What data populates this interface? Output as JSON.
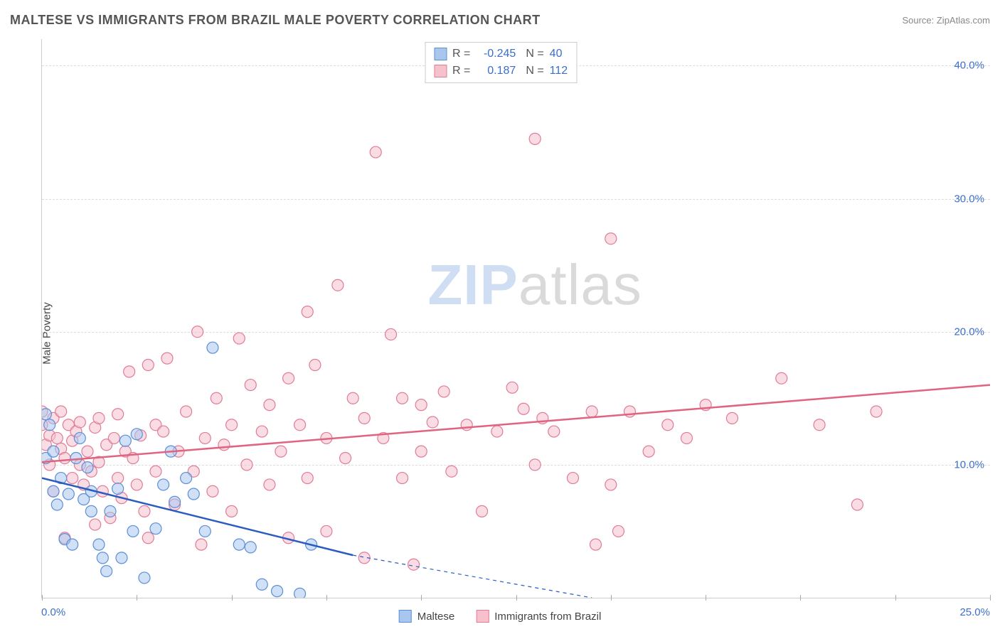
{
  "title": "MALTESE VS IMMIGRANTS FROM BRAZIL MALE POVERTY CORRELATION CHART",
  "source": "Source: ZipAtlas.com",
  "ylabel": "Male Poverty",
  "watermark_a": "ZIP",
  "watermark_b": "atlas",
  "chart": {
    "type": "scatter",
    "xlim": [
      0,
      25
    ],
    "ylim": [
      0,
      42
    ],
    "x_ticks_pct": [
      0,
      25
    ],
    "x_tick_marks": [
      0,
      2.5,
      5,
      7.5,
      10,
      12.5,
      15,
      17.5,
      20,
      22.5,
      25
    ],
    "y_ticks_pct": [
      10,
      20,
      30,
      40
    ],
    "background_color": "#ffffff",
    "grid_color": "#dddddd",
    "axis_color": "#cccccc",
    "tick_label_color": "#3b6fc9",
    "marker_radius": 8,
    "marker_stroke_width": 1.2,
    "trend_line_width": 2.5,
    "trend_dash_width": 1.2,
    "series": [
      {
        "name": "Maltese",
        "label": "Maltese",
        "fill": "#a9c6ef",
        "fill_opacity": 0.55,
        "stroke": "#5b8fd8",
        "line_color": "#2a5cc0",
        "R": "-0.245",
        "N": "40",
        "trend": {
          "x1": 0,
          "y1": 9.0,
          "x2": 8.2,
          "y2": 3.2,
          "dash_x2": 14.5,
          "dash_y2": 0
        },
        "points": [
          [
            0.1,
            10.5
          ],
          [
            0.2,
            13.0
          ],
          [
            0.1,
            13.8
          ],
          [
            0.3,
            8.0
          ],
          [
            0.3,
            11.0
          ],
          [
            0.4,
            7.0
          ],
          [
            0.5,
            9.0
          ],
          [
            0.6,
            4.4
          ],
          [
            0.7,
            7.8
          ],
          [
            0.8,
            4.0
          ],
          [
            0.9,
            10.5
          ],
          [
            1.0,
            12.0
          ],
          [
            1.1,
            7.4
          ],
          [
            1.2,
            9.8
          ],
          [
            1.3,
            8.0
          ],
          [
            1.3,
            6.5
          ],
          [
            1.5,
            4.0
          ],
          [
            1.6,
            3.0
          ],
          [
            1.7,
            2.0
          ],
          [
            1.8,
            6.5
          ],
          [
            2.0,
            8.2
          ],
          [
            2.1,
            3.0
          ],
          [
            2.2,
            11.8
          ],
          [
            2.4,
            5.0
          ],
          [
            2.5,
            12.3
          ],
          [
            2.7,
            1.5
          ],
          [
            3.0,
            5.2
          ],
          [
            3.2,
            8.5
          ],
          [
            3.4,
            11.0
          ],
          [
            3.5,
            7.2
          ],
          [
            3.8,
            9.0
          ],
          [
            4.0,
            7.8
          ],
          [
            4.3,
            5.0
          ],
          [
            4.5,
            18.8
          ],
          [
            5.2,
            4.0
          ],
          [
            5.5,
            3.8
          ],
          [
            5.8,
            1.0
          ],
          [
            6.2,
            0.5
          ],
          [
            6.8,
            0.3
          ],
          [
            7.1,
            4.0
          ]
        ]
      },
      {
        "name": "Immigrants from Brazil",
        "label": "Immigrants from Brazil",
        "fill": "#f6c1cd",
        "fill_opacity": 0.55,
        "stroke": "#e27b95",
        "line_color": "#e0647f",
        "R": "0.187",
        "N": "112",
        "trend": {
          "x1": 0,
          "y1": 10.2,
          "x2": 25,
          "y2": 16.0
        },
        "points": [
          [
            0.0,
            14.0
          ],
          [
            0.0,
            13.0
          ],
          [
            0.1,
            11.5
          ],
          [
            0.2,
            10.0
          ],
          [
            0.2,
            12.2
          ],
          [
            0.3,
            13.5
          ],
          [
            0.3,
            8.0
          ],
          [
            0.4,
            12.0
          ],
          [
            0.5,
            11.2
          ],
          [
            0.5,
            14.0
          ],
          [
            0.6,
            10.5
          ],
          [
            0.7,
            13.0
          ],
          [
            0.8,
            11.8
          ],
          [
            0.8,
            9.0
          ],
          [
            0.9,
            12.5
          ],
          [
            1.0,
            10.0
          ],
          [
            1.0,
            13.2
          ],
          [
            1.1,
            8.5
          ],
          [
            1.2,
            11.0
          ],
          [
            1.3,
            9.5
          ],
          [
            1.4,
            12.8
          ],
          [
            1.5,
            10.2
          ],
          [
            1.5,
            13.5
          ],
          [
            1.6,
            8.0
          ],
          [
            1.7,
            11.5
          ],
          [
            1.8,
            6.0
          ],
          [
            1.9,
            12.0
          ],
          [
            2.0,
            9.0
          ],
          [
            2.0,
            13.8
          ],
          [
            2.1,
            7.5
          ],
          [
            2.2,
            11.0
          ],
          [
            2.3,
            17.0
          ],
          [
            2.4,
            10.5
          ],
          [
            2.5,
            8.5
          ],
          [
            2.6,
            12.2
          ],
          [
            2.7,
            6.5
          ],
          [
            2.8,
            17.5
          ],
          [
            3.0,
            13.0
          ],
          [
            3.0,
            9.5
          ],
          [
            3.2,
            12.5
          ],
          [
            3.3,
            18.0
          ],
          [
            3.5,
            7.0
          ],
          [
            3.6,
            11.0
          ],
          [
            3.8,
            14.0
          ],
          [
            4.0,
            9.5
          ],
          [
            4.1,
            20.0
          ],
          [
            4.3,
            12.0
          ],
          [
            4.5,
            8.0
          ],
          [
            4.6,
            15.0
          ],
          [
            4.8,
            11.5
          ],
          [
            5.0,
            6.5
          ],
          [
            5.0,
            13.0
          ],
          [
            5.2,
            19.5
          ],
          [
            5.4,
            10.0
          ],
          [
            5.5,
            16.0
          ],
          [
            5.8,
            12.5
          ],
          [
            6.0,
            8.5
          ],
          [
            6.0,
            14.5
          ],
          [
            6.3,
            11.0
          ],
          [
            6.5,
            16.5
          ],
          [
            6.5,
            4.5
          ],
          [
            6.8,
            13.0
          ],
          [
            7.0,
            21.5
          ],
          [
            7.0,
            9.0
          ],
          [
            7.2,
            17.5
          ],
          [
            7.5,
            12.0
          ],
          [
            7.5,
            5.0
          ],
          [
            7.8,
            23.5
          ],
          [
            8.0,
            10.5
          ],
          [
            8.2,
            15.0
          ],
          [
            8.5,
            13.5
          ],
          [
            8.5,
            3.0
          ],
          [
            8.8,
            33.5
          ],
          [
            9.0,
            12.0
          ],
          [
            9.2,
            19.8
          ],
          [
            9.5,
            15.0
          ],
          [
            9.5,
            9.0
          ],
          [
            9.8,
            2.5
          ],
          [
            10.0,
            14.5
          ],
          [
            10.0,
            11.0
          ],
          [
            10.3,
            13.2
          ],
          [
            10.6,
            15.5
          ],
          [
            10.8,
            9.5
          ],
          [
            11.2,
            13.0
          ],
          [
            11.6,
            6.5
          ],
          [
            12.0,
            12.5
          ],
          [
            12.4,
            15.8
          ],
          [
            12.7,
            14.2
          ],
          [
            13.0,
            34.5
          ],
          [
            13.0,
            10.0
          ],
          [
            13.2,
            13.5
          ],
          [
            13.5,
            12.5
          ],
          [
            14.0,
            9.0
          ],
          [
            14.5,
            14.0
          ],
          [
            14.6,
            4.0
          ],
          [
            15.0,
            27.0
          ],
          [
            15.0,
            8.5
          ],
          [
            15.2,
            5.0
          ],
          [
            15.5,
            14.0
          ],
          [
            16.0,
            11.0
          ],
          [
            16.5,
            13.0
          ],
          [
            17.0,
            12.0
          ],
          [
            17.5,
            14.5
          ],
          [
            18.2,
            13.5
          ],
          [
            19.5,
            16.5
          ],
          [
            20.5,
            13.0
          ],
          [
            21.5,
            7.0
          ],
          [
            22.0,
            14.0
          ],
          [
            0.6,
            4.5
          ],
          [
            1.4,
            5.5
          ],
          [
            2.8,
            4.5
          ],
          [
            4.2,
            4.0
          ]
        ]
      }
    ]
  }
}
